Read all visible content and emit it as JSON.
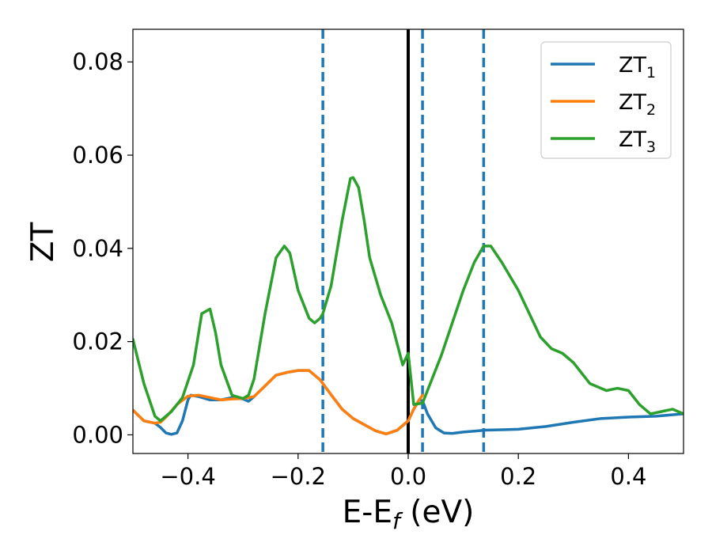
{
  "chart_data": {
    "type": "line",
    "xlabel": "E-E",
    "xlabel_sub": "f",
    "xlabel_unit": " (eV)",
    "ylabel": "ZT",
    "xlim": [
      -0.5,
      0.5
    ],
    "ylim": [
      -0.004,
      0.087
    ],
    "xticks": [
      -0.4,
      -0.2,
      0.0,
      0.2,
      0.4
    ],
    "xtick_labels": [
      "−0.4",
      "−0.2",
      "0.0",
      "0.2",
      "0.4"
    ],
    "yticks": [
      0.0,
      0.02,
      0.04,
      0.06,
      0.08
    ],
    "ytick_labels": [
      "0.00",
      "0.02",
      "0.04",
      "0.06",
      "0.08"
    ],
    "grid": false,
    "legend_position": "top-right",
    "vertical_lines": [
      {
        "x": 0.0,
        "style": "solid",
        "color": "#000000"
      },
      {
        "x": -0.155,
        "style": "dashed",
        "color": "#1f77b4"
      },
      {
        "x": 0.026,
        "style": "dashed",
        "color": "#1f77b4"
      },
      {
        "x": 0.137,
        "style": "dashed",
        "color": "#1f77b4"
      }
    ],
    "series": [
      {
        "name": "ZT",
        "name_sub": "1",
        "color": "#1f77b4",
        "x": [
          -0.5,
          -0.48,
          -0.46,
          -0.45,
          -0.44,
          -0.43,
          -0.42,
          -0.41,
          -0.4,
          -0.395,
          -0.38,
          -0.36,
          -0.34,
          -0.32,
          -0.3,
          -0.29,
          -0.28,
          -0.26,
          -0.24,
          -0.22,
          -0.2,
          -0.18,
          -0.16,
          -0.155,
          -0.14,
          -0.12,
          -0.1,
          -0.08,
          -0.06,
          -0.04,
          -0.02,
          0.0,
          0.01,
          0.02,
          0.026,
          0.035,
          0.05,
          0.065,
          0.08,
          0.1,
          0.12,
          0.14,
          0.17,
          0.2,
          0.25,
          0.3,
          0.35,
          0.4,
          0.45,
          0.5
        ],
        "y": [
          0.0053,
          0.003,
          0.0025,
          0.0016,
          0.0004,
          0.0001,
          0.0004,
          0.003,
          0.0075,
          0.0085,
          0.0082,
          0.0075,
          0.0075,
          0.008,
          0.0077,
          0.0072,
          0.0082,
          0.0105,
          0.0128,
          0.0134,
          0.0138,
          0.0138,
          0.0118,
          0.011,
          0.0086,
          0.0055,
          0.0035,
          0.0022,
          0.0009,
          0.0002,
          0.001,
          0.003,
          0.0055,
          0.0075,
          0.0073,
          0.0045,
          0.0015,
          0.0004,
          0.0003,
          0.0006,
          0.0008,
          0.001,
          0.0011,
          0.0012,
          0.0018,
          0.0027,
          0.0035,
          0.0038,
          0.004,
          0.0045
        ]
      },
      {
        "name": "ZT",
        "name_sub": "2",
        "color": "#ff7f0e",
        "x": [
          -0.5,
          -0.48,
          -0.46,
          -0.45,
          -0.44,
          -0.42,
          -0.4,
          -0.38,
          -0.36,
          -0.34,
          -0.32,
          -0.3,
          -0.28,
          -0.26,
          -0.24,
          -0.22,
          -0.2,
          -0.18,
          -0.16,
          -0.155,
          -0.14,
          -0.12,
          -0.1,
          -0.08,
          -0.06,
          -0.04,
          -0.02,
          0.0,
          0.01,
          0.02,
          0.026
        ],
        "y": [
          0.0053,
          0.003,
          0.0025,
          0.0027,
          0.0038,
          0.0065,
          0.0083,
          0.0085,
          0.008,
          0.0075,
          0.0077,
          0.0078,
          0.0082,
          0.0105,
          0.0128,
          0.0134,
          0.0138,
          0.0138,
          0.0118,
          0.011,
          0.0086,
          0.0055,
          0.0035,
          0.0022,
          0.0009,
          0.0002,
          0.001,
          0.003,
          0.0055,
          0.0075,
          0.0085
        ]
      },
      {
        "name": "ZT",
        "name_sub": "3",
        "color": "#2ca02c",
        "x": [
          -0.5,
          -0.48,
          -0.46,
          -0.45,
          -0.43,
          -0.41,
          -0.39,
          -0.375,
          -0.36,
          -0.35,
          -0.34,
          -0.32,
          -0.3,
          -0.29,
          -0.28,
          -0.26,
          -0.24,
          -0.225,
          -0.215,
          -0.2,
          -0.18,
          -0.17,
          -0.16,
          -0.155,
          -0.14,
          -0.12,
          -0.105,
          -0.1,
          -0.09,
          -0.08,
          -0.07,
          -0.05,
          -0.03,
          -0.01,
          0.0,
          0.01,
          0.026,
          0.04,
          0.06,
          0.08,
          0.1,
          0.12,
          0.137,
          0.15,
          0.17,
          0.2,
          0.22,
          0.24,
          0.26,
          0.28,
          0.3,
          0.33,
          0.36,
          0.38,
          0.4,
          0.42,
          0.44,
          0.46,
          0.48,
          0.5
        ],
        "y": [
          0.0205,
          0.011,
          0.004,
          0.003,
          0.005,
          0.008,
          0.015,
          0.026,
          0.027,
          0.022,
          0.015,
          0.0085,
          0.0078,
          0.0085,
          0.012,
          0.026,
          0.038,
          0.0405,
          0.039,
          0.031,
          0.025,
          0.024,
          0.025,
          0.026,
          0.032,
          0.046,
          0.055,
          0.0552,
          0.053,
          0.046,
          0.038,
          0.03,
          0.024,
          0.015,
          0.0175,
          0.0065,
          0.0068,
          0.011,
          0.017,
          0.024,
          0.031,
          0.037,
          0.0405,
          0.0405,
          0.037,
          0.031,
          0.026,
          0.021,
          0.0185,
          0.0175,
          0.0155,
          0.011,
          0.0095,
          0.01,
          0.0095,
          0.0065,
          0.0045,
          0.005,
          0.0055,
          0.0045
        ]
      }
    ]
  }
}
